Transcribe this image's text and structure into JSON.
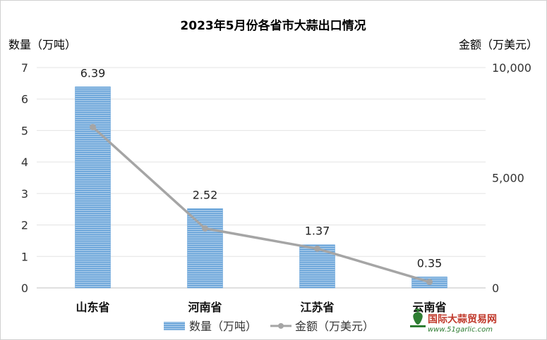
{
  "chart_data": {
    "type": "bar+line",
    "title": "2023年5月份各省市大蒜出口情况",
    "ylabel_left": "数量（万吨）",
    "ylabel_right": "金额（万美元）",
    "categories": [
      "山东省",
      "河南省",
      "江苏省",
      "云南省"
    ],
    "series": [
      {
        "name": "数量（万吨）",
        "type": "bar",
        "axis": "left",
        "values": [
          6.39,
          2.52,
          1.37,
          0.35
        ],
        "color": "#5b9bd5"
      },
      {
        "name": "金额（万美元）",
        "type": "line",
        "axis": "right",
        "values": [
          7300,
          2700,
          1780,
          270
        ],
        "color": "#a5a5a5"
      }
    ],
    "data_labels": [
      "6.39",
      "2.52",
      "1.37",
      "0.35"
    ],
    "ylim_left": [
      0,
      7
    ],
    "yticks_left": [
      "0",
      "1",
      "2",
      "3",
      "4",
      "5",
      "6",
      "7"
    ],
    "ylim_right": [
      0,
      10000
    ],
    "yticks_right": [
      "0",
      "5,000",
      "10,000"
    ],
    "grid": true,
    "legend_position": "bottom"
  },
  "watermark": {
    "name": "国际大蒜贸易网",
    "url": "www.51garlic.com",
    "icon": "garlic-logo-icon"
  }
}
